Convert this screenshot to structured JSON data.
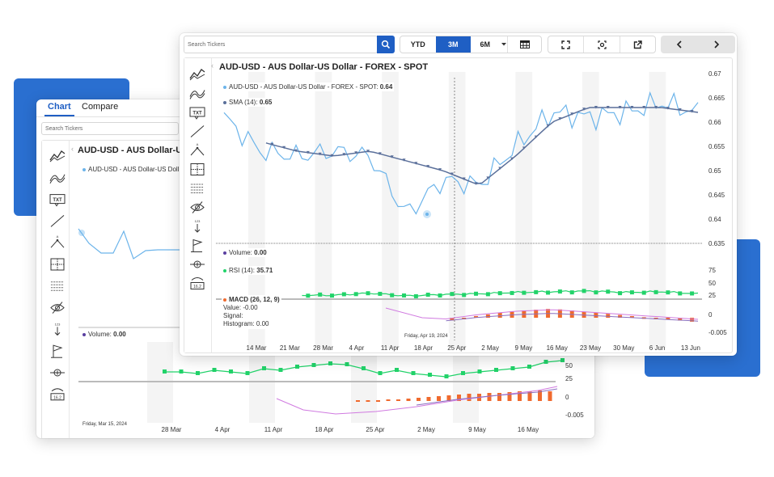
{
  "back_window": {
    "tabs": [
      {
        "label": "Chart"
      },
      {
        "label": "Compare"
      }
    ],
    "search_placeholder": "Search Tickers",
    "chart_title": "AUD-USD - AUS Dollar-US Dollar",
    "main_legend": "AUD-USD - AUS Dollar-US Doll",
    "volume_label": "Volume:",
    "volume_value": "0.00",
    "rsi_ticks": [
      "50",
      "25"
    ],
    "macd_ticks": [
      "0",
      "-0.005"
    ],
    "date_labels": [
      "28 Mar",
      "4 Apr",
      "11 Apr",
      "18 Apr",
      "25 Apr",
      "2 May",
      "9 May",
      "16 May"
    ],
    "cursor_date": "Friday, Mar 15, 2024"
  },
  "front_window": {
    "search_placeholder": "Search Tickers",
    "range_buttons": [
      {
        "label": "YTD"
      },
      {
        "label": "3M"
      },
      {
        "label": "6M"
      }
    ],
    "active_range": "3M",
    "chart_title": "AUD-USD - AUS Dollar-US Dollar - FOREX - SPOT",
    "price_legend": {
      "label": "AUD-USD - AUS Dollar-US Dollar - FOREX - SPOT:",
      "value": "0.64"
    },
    "sma_legend": {
      "label": "SMA (14):",
      "value": "0.65"
    },
    "volume_legend": {
      "label": "Volume:",
      "value": "0.00"
    },
    "rsi_legend": {
      "label": "RSI (14):",
      "value": "35.71"
    },
    "macd_legend": {
      "title": "MACD (26, 12, 9)",
      "value_line": "Value: -0.00",
      "signal_line": "Signal:",
      "histogram_line": "Histogram: 0.00"
    },
    "price_ticks": [
      "0.67",
      "0.665",
      "0.66",
      "0.655",
      "0.65",
      "0.645",
      "0.64",
      "0.635"
    ],
    "rsi_ticks": [
      "75",
      "50",
      "25"
    ],
    "macd_ticks": [
      "0",
      "-0.005"
    ],
    "date_labels": [
      "14 Mar",
      "21 Mar",
      "28 Mar",
      "4 Apr",
      "11 Apr",
      "18 Apr",
      "25 Apr",
      "2 May",
      "9 May",
      "16 May",
      "23 May",
      "30 May",
      "6 Jun",
      "13 Jun"
    ],
    "cursor_date": "Friday, Apr 19, 2024"
  },
  "tool_icons": [
    "line-chart-icon",
    "compare-icon",
    "text-icon",
    "trendline-icon",
    "fibonacci-icon",
    "crosshair-icon",
    "grid-icon",
    "hide-icon",
    "data-point-icon",
    "flag-icon",
    "zoom-icon",
    "eye-value-icon"
  ],
  "colors": {
    "accent": "#1f5fc4",
    "price": "#6cb4ea",
    "sma": "#5a6f9a",
    "rsi": "#22d36a",
    "macd_hist": "#f06a2e",
    "signal": "#d07ae0",
    "blue_block": "#2a6fd0"
  },
  "chart_data": [
    {
      "type": "line",
      "title": "AUD-USD - AUS Dollar-US Dollar - FOREX - SPOT",
      "x": [
        "14 Mar",
        "21 Mar",
        "28 Mar",
        "4 Apr",
        "11 Apr",
        "18 Apr",
        "25 Apr",
        "2 May",
        "9 May",
        "16 May",
        "23 May",
        "30 May",
        "6 Jun",
        "13 Jun"
      ],
      "ylim": [
        0.635,
        0.67
      ],
      "series": [
        {
          "name": "AUD-USD - AUS Dollar-US Dollar - FOREX - SPOT",
          "values": [
            0.661,
            0.654,
            0.653,
            0.654,
            0.653,
            0.641,
            0.648,
            0.647,
            0.655,
            0.662,
            0.661,
            0.662,
            0.664,
            0.662
          ]
        },
        {
          "name": "SMA (14)",
          "values": [
            null,
            0.656,
            0.654,
            0.653,
            0.654,
            0.652,
            0.65,
            0.647,
            0.653,
            0.66,
            0.663,
            0.663,
            0.663,
            0.662
          ]
        }
      ]
    },
    {
      "type": "line",
      "title": "RSI (14)",
      "ylim": [
        0,
        100
      ],
      "series": [
        {
          "name": "RSI (14)",
          "values": [
            null,
            null,
            44,
            44,
            50,
            42,
            46,
            48,
            52,
            54,
            56,
            52,
            54,
            48
          ]
        }
      ]
    },
    {
      "type": "bar",
      "title": "MACD (26, 12, 9)",
      "ylim": [
        -0.005,
        0.002
      ],
      "series": [
        {
          "name": "Histogram",
          "values": [
            null,
            null,
            null,
            null,
            null,
            null,
            -0.0004,
            0.0002,
            0.0006,
            0.0008,
            0.0005,
            0.0002,
            -0.0001,
            -0.0004
          ]
        }
      ]
    }
  ]
}
